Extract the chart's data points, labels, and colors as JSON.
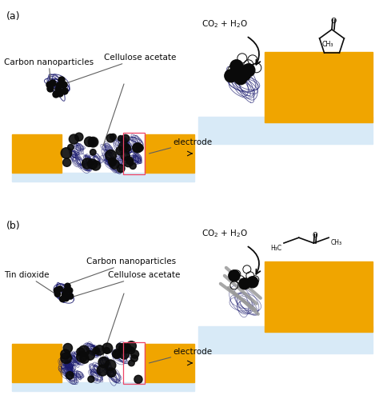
{
  "bg_color": "#ffffff",
  "gold_color": "#F0A500",
  "light_blue": "#d8eaf7",
  "dark_blue": "#1a1a6e",
  "black": "#0a0a0a",
  "gray": "#606060",
  "light_gray": "#aaaaaa",
  "pink_border": "#ee4466",
  "panel_a_label": "(a)",
  "panel_b_label": "(b)",
  "electrode_label": "electrode",
  "cellulose_label": "Cellulose acetate",
  "carbon_label": "Carbon nanoparticles",
  "tin_label": "Tin dioxide",
  "font_size_labels": 7.5,
  "font_size_panel": 9,
  "font_size_small": 6.5
}
